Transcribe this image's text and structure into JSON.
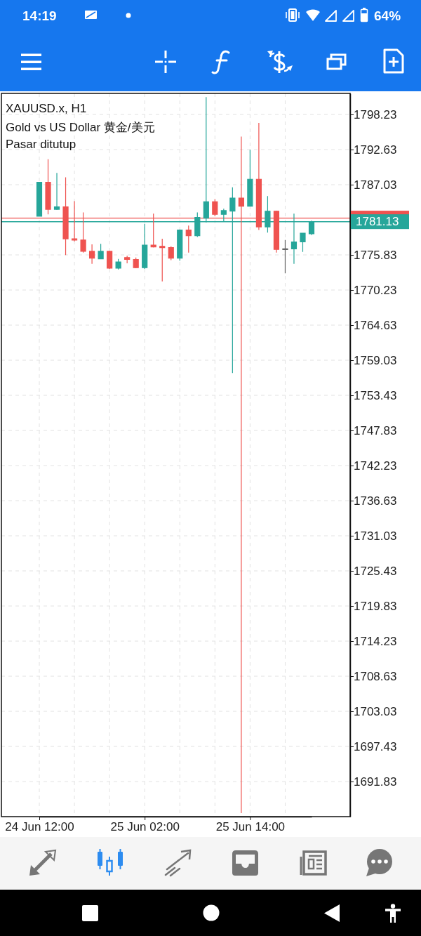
{
  "chart_data": {
    "type": "candlestick",
    "title": "XAUUSD.x, H1",
    "subtitle": "Gold vs US Dollar 黄金/美元",
    "annotations": [
      "Pasar ditutup",
      "14:19",
      "64%"
    ],
    "categories": [
      "24 Jun 12:00",
      null,
      null,
      null,
      null,
      null,
      null,
      null,
      null,
      null,
      null,
      null,
      "25 Jun 02:00",
      null,
      null,
      null,
      null,
      null,
      null,
      null,
      null,
      null,
      null,
      null,
      "25 Jun 14:00",
      null,
      null,
      null,
      null,
      null,
      null,
      null
    ],
    "ohlc": [
      [
        1782.0,
        1787.4,
        1782.0,
        1787.4
      ],
      [
        1787.4,
        1791.1,
        1782.3,
        1783.1
      ],
      [
        1783.1,
        1788.9,
        1783.0,
        1783.5
      ],
      [
        1783.5,
        1788.2,
        1775.8,
        1778.4
      ],
      [
        1778.4,
        1784.4,
        1778.0,
        1778.2
      ],
      [
        1778.2,
        1782.6,
        1776.2,
        1776.4
      ],
      [
        1776.4,
        1777.5,
        1774.4,
        1775.3
      ],
      [
        1775.2,
        1777.6,
        1775.2,
        1776.4
      ],
      [
        1776.4,
        1776.5,
        1773.6,
        1773.7
      ],
      [
        1773.7,
        1775.2,
        1773.5,
        1774.7
      ],
      [
        1775.4,
        1775.7,
        1774.5,
        1775.1
      ],
      [
        1775.1,
        1775.4,
        1773.7,
        1773.8
      ],
      [
        1773.8,
        1780.8,
        1773.6,
        1777.4
      ],
      [
        1777.4,
        1782.4,
        1777.0,
        1777.1
      ],
      [
        1777.2,
        1778.4,
        1771.6,
        1777.0
      ],
      [
        1777.0,
        1777.2,
        1775.0,
        1775.3
      ],
      [
        1775.3,
        1779.9,
        1774.9,
        1779.8
      ],
      [
        1779.8,
        1780.5,
        1776.2,
        1778.9
      ],
      [
        1778.9,
        1782.6,
        1778.7,
        1781.8
      ],
      [
        1781.7,
        1801.0,
        1781.0,
        1784.3
      ],
      [
        1784.3,
        1784.7,
        1782.0,
        1782.3
      ],
      [
        1782.3,
        1783.2,
        1781.2,
        1782.9
      ],
      [
        1782.8,
        1786.6,
        1757.0,
        1784.9
      ],
      [
        1784.9,
        1794.7,
        1686.8,
        1783.6
      ],
      [
        1783.6,
        1792.6,
        1783.6,
        1787.9
      ],
      [
        1787.9,
        1796.9,
        1779.8,
        1780.3
      ],
      [
        1780.3,
        1785.2,
        1779.4,
        1782.8
      ],
      [
        1782.8,
        1782.9,
        1776.2,
        1776.7
      ],
      [
        1776.8,
        1778.2,
        1772.9,
        1776.8
      ],
      [
        1776.8,
        1782.4,
        1774.4,
        1777.9
      ],
      [
        1777.9,
        1779.3,
        1776.3,
        1779.3
      ],
      [
        1779.2,
        1781.3,
        1779.0,
        1781.13
      ]
    ],
    "colors": [
      "#26a69a",
      "#ef5350",
      "#26a69a",
      "#ef5350",
      "#ef5350",
      "#ef5350",
      "#ef5350",
      "#26a69a",
      "#ef5350",
      "#26a69a",
      "#ef5350",
      "#ef5350",
      "#26a69a",
      "#ef5350",
      "#ef5350",
      "#ef5350",
      "#26a69a",
      "#ef5350",
      "#26a69a",
      "#26a69a",
      "#ef5350",
      "#26a69a",
      "#26a69a",
      "#ef5350",
      "#26a69a",
      "#ef5350",
      "#26a69a",
      "#ef5350",
      "#666666",
      "#26a69a",
      "#26a69a",
      "#26a69a"
    ],
    "ylim": [
      1686.23,
      1801.59
    ],
    "yticks": [
      1798.23,
      1792.63,
      1787.03,
      1775.83,
      1770.23,
      1764.63,
      1759.03,
      1753.43,
      1747.83,
      1742.23,
      1736.63,
      1731.03,
      1725.43,
      1719.83,
      1714.23,
      1708.63,
      1703.03,
      1697.43,
      1691.83
    ],
    "ref_lines": [
      {
        "axis": "y",
        "value": 1781.7,
        "color": "#ef5350"
      },
      {
        "axis": "y",
        "value": 1781.13,
        "label": "1781.13",
        "color": "#26a69a"
      }
    ],
    "grid": true
  }
}
